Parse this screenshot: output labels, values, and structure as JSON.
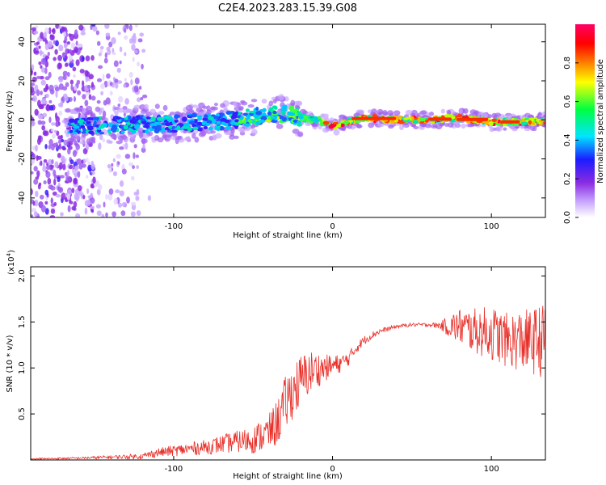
{
  "title": "C2E4.2023.283.15.39.G08",
  "chart_data": [
    {
      "type": "heatmap",
      "xlabel": "Height of straight line (km)",
      "ylabel": "Frequency (Hz)",
      "xlim": [
        -190,
        134
      ],
      "ylim": [
        -50,
        49
      ],
      "x_ticks": [
        -100,
        0,
        100
      ],
      "y_ticks": [
        -40,
        -20,
        0,
        20,
        40
      ],
      "colorbar": {
        "label": "Normalized spectral amplitude",
        "range": [
          0,
          1
        ],
        "ticks": [
          "0.0",
          "0.2",
          "0.4",
          "0.6",
          "0.8"
        ],
        "colormap": [
          "#ffffff",
          "#c9a8ff",
          "#8a2be2",
          "#1c1cff",
          "#00e5ff",
          "#00ff40",
          "#ffff00",
          "#ff8000",
          "#ff0000",
          "#ff0066"
        ]
      },
      "ridge": {
        "x": [
          -160,
          -140,
          -120,
          -100,
          -80,
          -60,
          -40,
          -30,
          -20,
          -10,
          0,
          10,
          20,
          40,
          60,
          80,
          100,
          120,
          134
        ],
        "y": [
          -3,
          -3,
          -2,
          -2,
          -1,
          0,
          3,
          3,
          1,
          0,
          -3,
          -1,
          1,
          0,
          0,
          1,
          -1,
          -1,
          -1
        ]
      }
    },
    {
      "type": "line",
      "xlabel": "Height of straight line (km)",
      "ylabel": "SNR (10 * v/v)",
      "scale_note": "(x10",
      "scale_exp": "4",
      "scale_close": ")",
      "xlim": [
        -190,
        134
      ],
      "ylim": [
        0,
        2.1
      ],
      "x_ticks": [
        -100,
        0,
        100
      ],
      "y_ticks": [
        "0.5",
        "1.0",
        "1.5",
        "2.0"
      ],
      "series": [
        {
          "color": "#e8302a",
          "x": [
            -190,
            -160,
            -140,
            -120,
            -110,
            -100,
            -90,
            -80,
            -70,
            -60,
            -50,
            -40,
            -35,
            -30,
            -25,
            -20,
            -15,
            -10,
            -5,
            0,
            5,
            10,
            15,
            20,
            25,
            30,
            40,
            50,
            60,
            68,
            75,
            80,
            90,
            100,
            110,
            120,
            125,
            130,
            134
          ],
          "y": [
            0.01,
            0.02,
            0.03,
            0.04,
            0.08,
            0.1,
            0.12,
            0.14,
            0.17,
            0.2,
            0.22,
            0.3,
            0.4,
            0.6,
            0.75,
            0.85,
            0.95,
            0.98,
            1.0,
            1.02,
            1.05,
            1.1,
            1.22,
            1.3,
            1.36,
            1.4,
            1.45,
            1.47,
            1.47,
            1.46,
            1.45,
            1.45,
            1.4,
            1.38,
            1.3,
            1.3,
            1.28,
            1.3,
            1.3
          ],
          "noise": [
            0.01,
            0.01,
            0.02,
            0.03,
            0.05,
            0.06,
            0.07,
            0.08,
            0.1,
            0.12,
            0.15,
            0.2,
            0.25,
            0.3,
            0.3,
            0.3,
            0.25,
            0.2,
            0.15,
            0.12,
            0.1,
            0.08,
            0.06,
            0.05,
            0.04,
            0.03,
            0.02,
            0.02,
            0.02,
            0.04,
            0.15,
            0.2,
            0.25,
            0.3,
            0.3,
            0.35,
            0.35,
            0.4,
            0.4
          ]
        }
      ]
    }
  ]
}
